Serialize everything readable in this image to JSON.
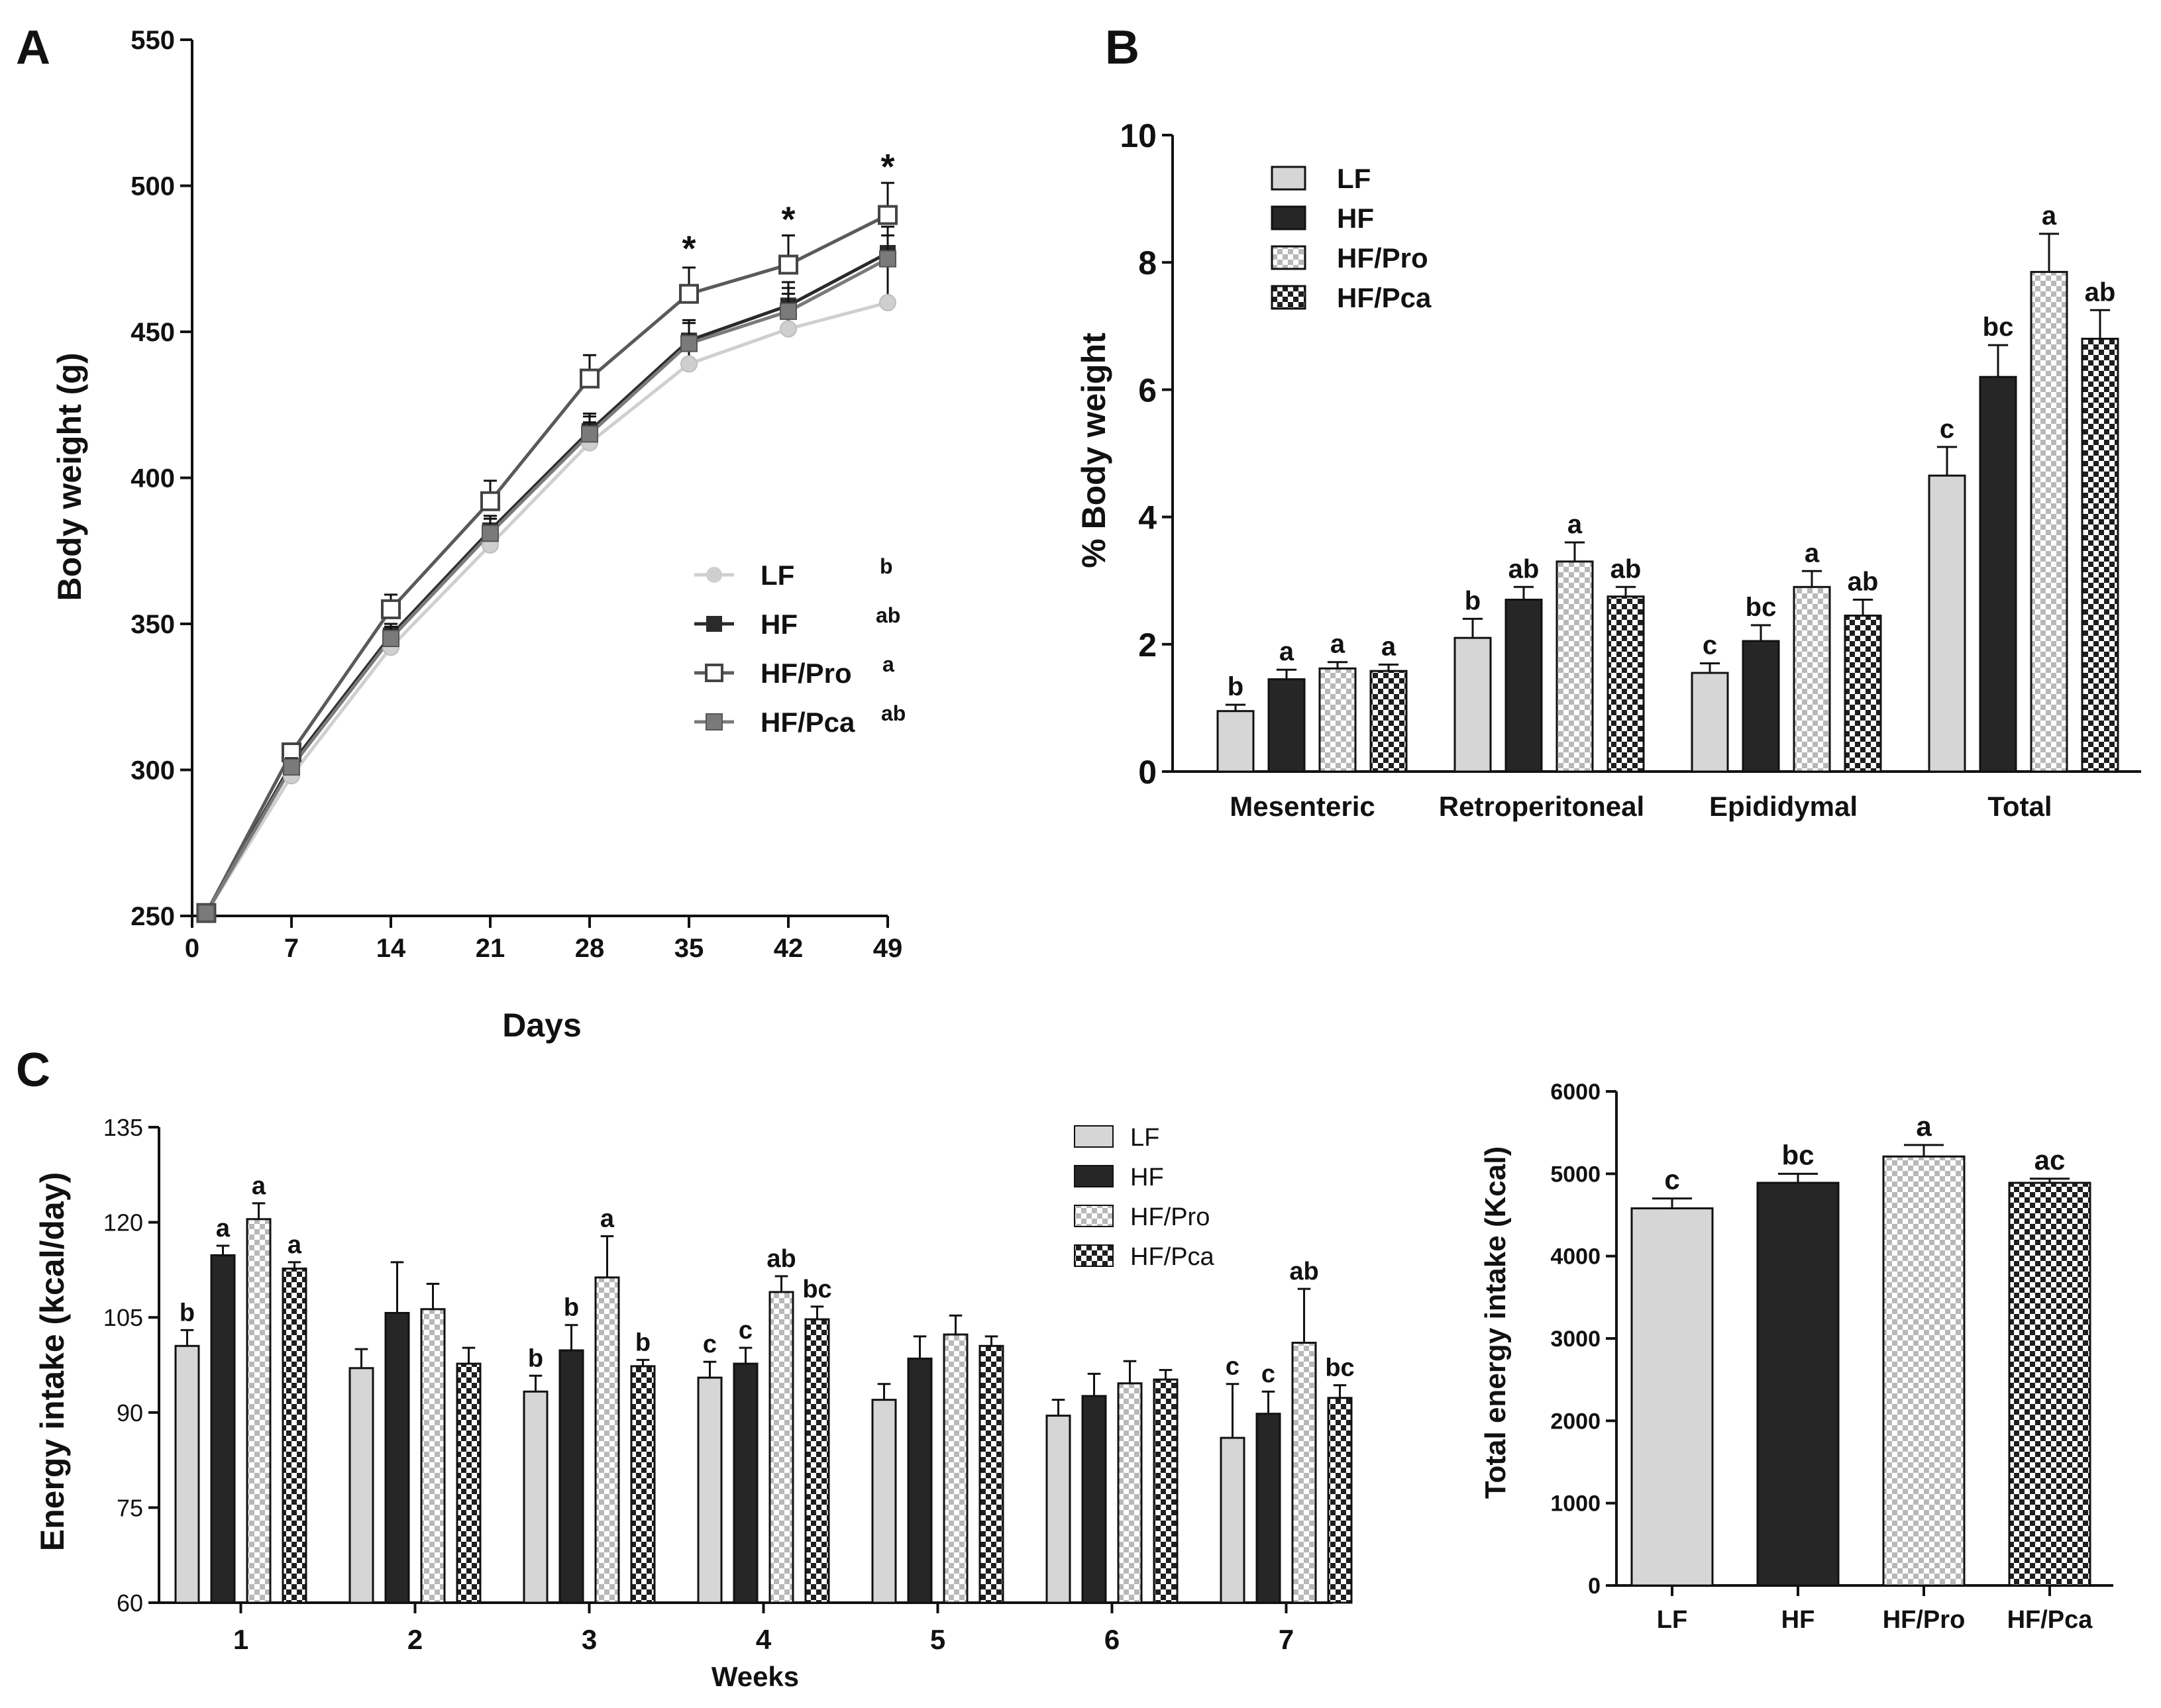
{
  "chart_data": [
    {
      "panel": "A",
      "type": "line",
      "xlabel": "Days",
      "ylabel": "Body weight (g)",
      "ylim": [
        250,
        550
      ],
      "yticks": [
        250,
        300,
        350,
        400,
        450,
        500,
        550
      ],
      "x": [
        1,
        7,
        14,
        21,
        28,
        35,
        42,
        49
      ],
      "xtick_labels": [
        "0",
        "7",
        "14",
        "21",
        "28",
        "35",
        "42",
        "49"
      ],
      "series": [
        {
          "name": "LF",
          "letter": "b",
          "color": "#cfcfcf",
          "marker": "circle",
          "values": [
            251,
            298,
            342,
            377,
            412,
            439,
            451,
            460
          ],
          "errors": [
            2,
            3,
            4,
            5,
            7,
            10,
            12,
            14
          ]
        },
        {
          "name": "HF",
          "letter": "ab",
          "color": "#2a2a2a",
          "marker": "square-filled",
          "values": [
            251,
            302,
            346,
            382,
            416,
            447,
            459,
            477
          ],
          "errors": [
            2,
            3,
            4,
            5,
            6,
            7,
            8,
            9
          ]
        },
        {
          "name": "HF/Pro",
          "letter": "a",
          "color": "#5a5a5a",
          "marker": "square-open",
          "values": [
            251,
            306,
            355,
            392,
            434,
            463,
            473,
            490
          ],
          "errors": [
            2,
            3,
            5,
            7,
            8,
            9,
            10,
            11
          ]
        },
        {
          "name": "HF/Pca",
          "letter": "ab",
          "color": "#7a7a7a",
          "marker": "square-gray",
          "values": [
            251,
            301,
            345,
            381,
            415,
            446,
            457,
            475
          ],
          "errors": [
            2,
            3,
            4,
            5,
            6,
            7,
            8,
            8
          ]
        }
      ],
      "significance": [
        {
          "x": 35,
          "y": 478,
          "label": "*"
        },
        {
          "x": 42,
          "y": 488,
          "label": "*"
        },
        {
          "x": 49,
          "y": 506,
          "label": "*"
        }
      ]
    },
    {
      "panel": "B",
      "type": "bar",
      "ylabel": "% Body weight",
      "ylim": [
        0,
        10
      ],
      "yticks": [
        "0",
        "2",
        "4",
        "6",
        "8",
        "10"
      ],
      "categories": [
        "Mesenteric",
        "Retroperitoneal",
        "Epididymal",
        "Total"
      ],
      "series": [
        {
          "name": "LF",
          "pattern": "light",
          "values": [
            0.95,
            2.1,
            1.55,
            4.65
          ],
          "errors": [
            0.1,
            0.3,
            0.15,
            0.45
          ],
          "letters": [
            "b",
            "b",
            "c",
            "c"
          ]
        },
        {
          "name": "HF",
          "pattern": "dark",
          "values": [
            1.45,
            2.7,
            2.05,
            6.2
          ],
          "errors": [
            0.15,
            0.2,
            0.25,
            0.5
          ],
          "letters": [
            "a",
            "ab",
            "bc",
            "bc"
          ]
        },
        {
          "name": "HF/Pro",
          "pattern": "check-light",
          "values": [
            1.62,
            3.3,
            2.9,
            7.85
          ],
          "errors": [
            0.1,
            0.3,
            0.25,
            0.6
          ],
          "letters": [
            "a",
            "a",
            "a",
            "a"
          ]
        },
        {
          "name": "HF/Pca",
          "pattern": "check-dark",
          "values": [
            1.58,
            2.75,
            2.45,
            6.8
          ],
          "errors": [
            0.1,
            0.15,
            0.25,
            0.45
          ],
          "letters": [
            "a",
            "ab",
            "ab",
            "ab"
          ]
        }
      ]
    },
    {
      "panel": "C",
      "type": "bar",
      "xlabel": "Weeks",
      "ylabel": "Energy intake (kcal/day)",
      "ylim": [
        60,
        135
      ],
      "yticks": [
        "60",
        "75",
        "90",
        "105",
        "120",
        "135"
      ],
      "categories": [
        "1",
        "2",
        "3",
        "4",
        "5",
        "6",
        "7"
      ],
      "series": [
        {
          "name": "LF",
          "pattern": "light",
          "values": [
            100.5,
            97,
            93.3,
            95.5,
            92,
            89.5,
            86
          ],
          "errors": [
            2.5,
            3,
            2.5,
            2.5,
            2.5,
            2.5,
            8.5
          ],
          "letters": [
            "b",
            "",
            "b",
            "c",
            "",
            "",
            "c"
          ]
        },
        {
          "name": "HF",
          "pattern": "dark",
          "values": [
            114.8,
            105.7,
            99.8,
            97.7,
            98.5,
            92.6,
            89.8
          ],
          "errors": [
            1.5,
            8,
            4,
            2.5,
            3.5,
            3.5,
            3.5
          ],
          "letters": [
            "a",
            "",
            "b",
            "c",
            "",
            "",
            "c"
          ]
        },
        {
          "name": "HF/Pro",
          "pattern": "check-light",
          "values": [
            120.5,
            106.3,
            111.3,
            109,
            102.3,
            94.6,
            101
          ],
          "errors": [
            2.5,
            4,
            6.5,
            2.5,
            3,
            3.5,
            8.5
          ],
          "letters": [
            "a",
            "",
            "a",
            "ab",
            "",
            "",
            "ab"
          ]
        },
        {
          "name": "HF/Pca",
          "pattern": "check-dark",
          "values": [
            112.7,
            97.7,
            97.3,
            104.7,
            100.5,
            95.2,
            92.3
          ],
          "errors": [
            1,
            2.5,
            1,
            2,
            1.5,
            1.5,
            2
          ],
          "letters": [
            "a",
            "",
            "b",
            "bc",
            "",
            "",
            "bc"
          ]
        }
      ]
    },
    {
      "panel": "C2",
      "type": "bar",
      "ylabel": "Total energy intake (Kcal)",
      "ylim": [
        0,
        6000
      ],
      "yticks": [
        "0",
        "1000",
        "2000",
        "3000",
        "4000",
        "5000",
        "6000"
      ],
      "categories": [
        "LF",
        "HF",
        "HF/Pro",
        "HF/Pca"
      ],
      "patterns": [
        "light",
        "dark",
        "check-light",
        "check-dark"
      ],
      "values": [
        4580,
        4890,
        5210,
        4890
      ],
      "errors": [
        120,
        110,
        140,
        50
      ],
      "letters": [
        "c",
        "bc",
        "a",
        "ac"
      ]
    }
  ],
  "panel_labels": {
    "a": "A",
    "b": "B",
    "c": "C"
  }
}
